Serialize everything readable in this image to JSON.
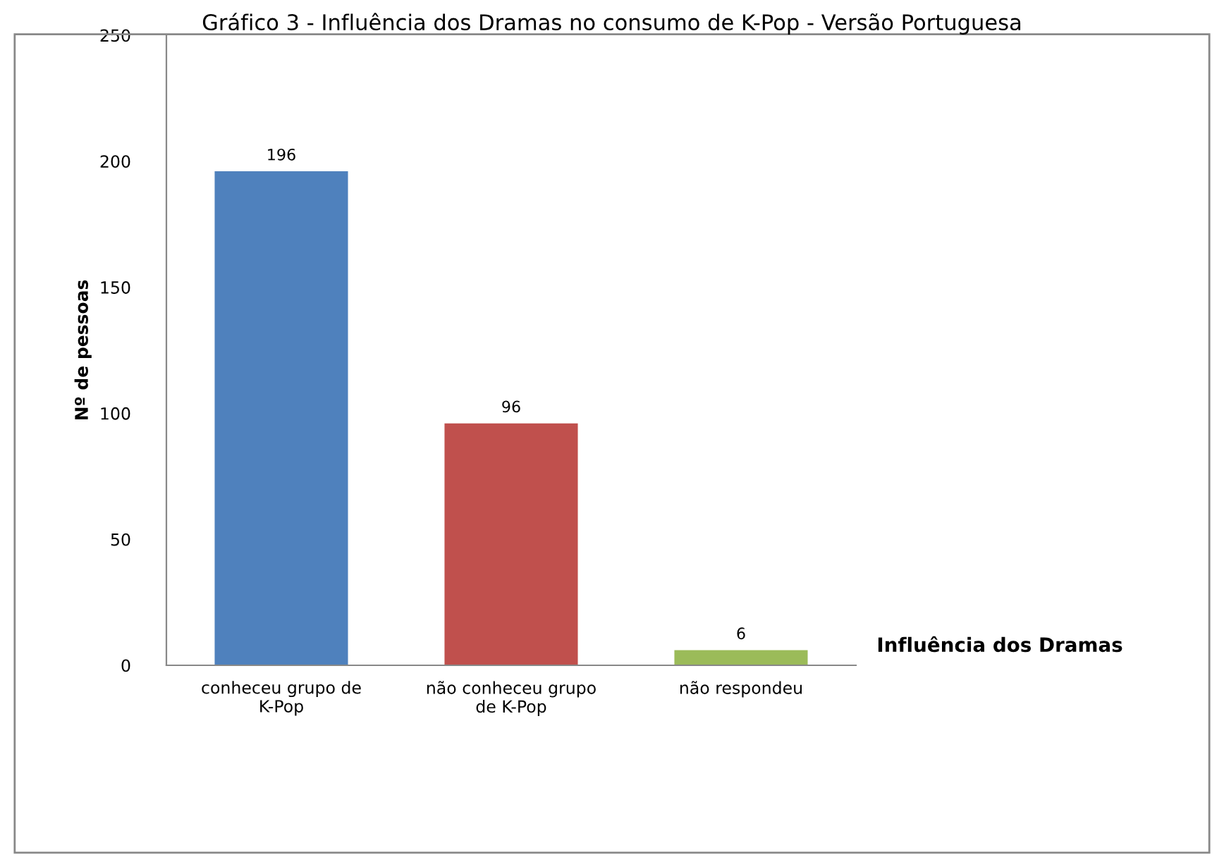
{
  "chart_data": {
    "type": "bar",
    "title": "Gráfico 3 - Influência dos Dramas no consumo de K-Pop - Versão Portuguesa",
    "xlabel": "Influência dos Dramas",
    "ylabel": "Nº de pessoas",
    "categories": [
      "conheceu grupo de\nK-Pop",
      "não conheceu grupo\nde K-Pop",
      "não respondeu"
    ],
    "values": [
      196,
      96,
      6
    ],
    "colors": [
      "#4f81bd",
      "#c0504d",
      "#9bbb59"
    ],
    "ylim": [
      0,
      250
    ],
    "yticks": [
      0,
      50,
      100,
      150,
      200,
      250
    ],
    "data_labels": true,
    "grid": false,
    "legend": false
  }
}
